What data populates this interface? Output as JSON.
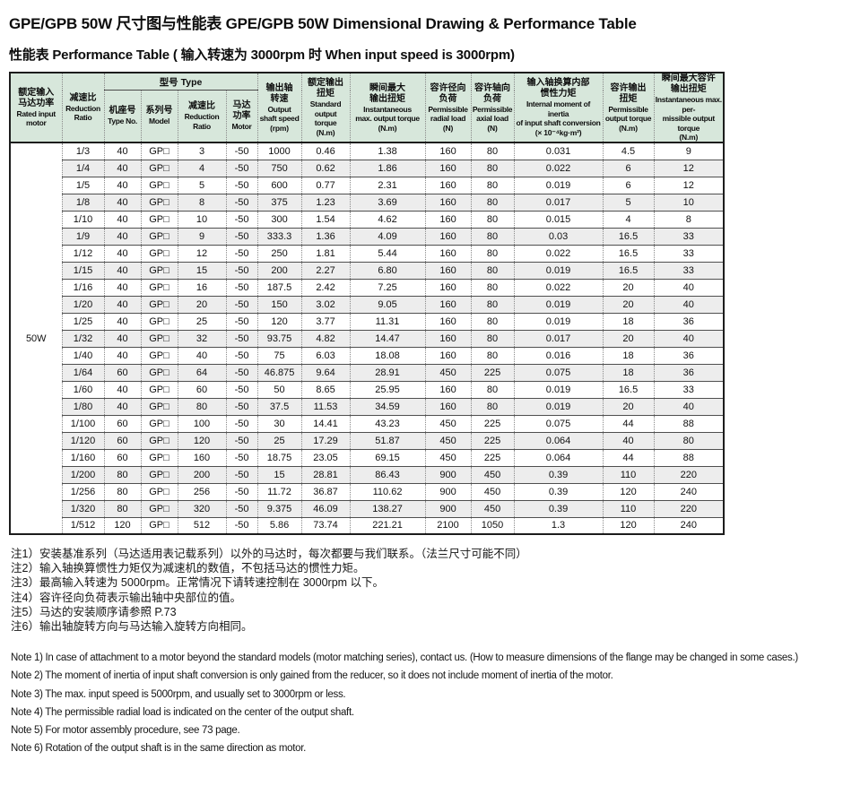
{
  "titles": {
    "main": "GPE/GPB 50W 尺寸图与性能表 GPE/GPB 50W Dimensional Drawing & Performance Table",
    "sub": "性能表 Performance Table ( 输入转速为 3000rpm 时  When input speed is 3000rpm)"
  },
  "table": {
    "group_header": "型号 Type",
    "motor_label": "50W",
    "headers": [
      {
        "zh": "额定输入\n马达功率",
        "en": "Rated input\nmotor",
        "unit": ""
      },
      {
        "zh": "减速比",
        "en": "Reduction\nRatio",
        "unit": ""
      },
      {
        "zh": "机座号",
        "en": "Type No.",
        "unit": ""
      },
      {
        "zh": "系列号",
        "en": "Model",
        "unit": ""
      },
      {
        "zh": "减速比",
        "en": "Reduction\nRatio",
        "unit": ""
      },
      {
        "zh": "马达\n功率",
        "en": "Motor",
        "unit": ""
      },
      {
        "zh": "输出轴\n转速",
        "en": "Output\nshaft speed",
        "unit": "(rpm)"
      },
      {
        "zh": "额定输出\n扭矩",
        "en": "Standard\noutput torque",
        "unit": "(N.m)"
      },
      {
        "zh": "瞬间最大\n输出扭矩",
        "en": "Instantaneous\nmax. output torque",
        "unit": "(N.m)"
      },
      {
        "zh": "容许径向\n负荷",
        "en": "Permissible\nradial load",
        "unit": "(N)"
      },
      {
        "zh": "容许轴向\n负荷",
        "en": "Permissible\naxial load",
        "unit": "(N)"
      },
      {
        "zh": "输入轴换算内部\n惯性力矩",
        "en": "Internal moment of inertia\nof input shaft conversion",
        "unit": "(× 10⁻⁴kg·m²)"
      },
      {
        "zh": "容许输出\n扭矩",
        "en": "Permissible\noutput torque",
        "unit": "(N.m)"
      },
      {
        "zh": "瞬间最大容许\n输出扭矩",
        "en": "Instantaneous max. per-\nmissible output torque",
        "unit": "(N.m)"
      }
    ],
    "rows": [
      [
        "1/3",
        "40",
        "GP□",
        "3",
        "-50",
        "1000",
        "0.46",
        "1.38",
        "160",
        "80",
        "0.031",
        "4.5",
        "9"
      ],
      [
        "1/4",
        "40",
        "GP□",
        "4",
        "-50",
        "750",
        "0.62",
        "1.86",
        "160",
        "80",
        "0.022",
        "6",
        "12"
      ],
      [
        "1/5",
        "40",
        "GP□",
        "5",
        "-50",
        "600",
        "0.77",
        "2.31",
        "160",
        "80",
        "0.019",
        "6",
        "12"
      ],
      [
        "1/8",
        "40",
        "GP□",
        "8",
        "-50",
        "375",
        "1.23",
        "3.69",
        "160",
        "80",
        "0.017",
        "5",
        "10"
      ],
      [
        "1/10",
        "40",
        "GP□",
        "10",
        "-50",
        "300",
        "1.54",
        "4.62",
        "160",
        "80",
        "0.015",
        "4",
        "8"
      ],
      [
        "1/9",
        "40",
        "GP□",
        "9",
        "-50",
        "333.3",
        "1.36",
        "4.09",
        "160",
        "80",
        "0.03",
        "16.5",
        "33"
      ],
      [
        "1/12",
        "40",
        "GP□",
        "12",
        "-50",
        "250",
        "1.81",
        "5.44",
        "160",
        "80",
        "0.022",
        "16.5",
        "33"
      ],
      [
        "1/15",
        "40",
        "GP□",
        "15",
        "-50",
        "200",
        "2.27",
        "6.80",
        "160",
        "80",
        "0.019",
        "16.5",
        "33"
      ],
      [
        "1/16",
        "40",
        "GP□",
        "16",
        "-50",
        "187.5",
        "2.42",
        "7.25",
        "160",
        "80",
        "0.022",
        "20",
        "40"
      ],
      [
        "1/20",
        "40",
        "GP□",
        "20",
        "-50",
        "150",
        "3.02",
        "9.05",
        "160",
        "80",
        "0.019",
        "20",
        "40"
      ],
      [
        "1/25",
        "40",
        "GP□",
        "25",
        "-50",
        "120",
        "3.77",
        "11.31",
        "160",
        "80",
        "0.019",
        "18",
        "36"
      ],
      [
        "1/32",
        "40",
        "GP□",
        "32",
        "-50",
        "93.75",
        "4.82",
        "14.47",
        "160",
        "80",
        "0.017",
        "20",
        "40"
      ],
      [
        "1/40",
        "40",
        "GP□",
        "40",
        "-50",
        "75",
        "6.03",
        "18.08",
        "160",
        "80",
        "0.016",
        "18",
        "36"
      ],
      [
        "1/64",
        "60",
        "GP□",
        "64",
        "-50",
        "46.875",
        "9.64",
        "28.91",
        "450",
        "225",
        "0.075",
        "18",
        "36"
      ],
      [
        "1/60",
        "40",
        "GP□",
        "60",
        "-50",
        "50",
        "8.65",
        "25.95",
        "160",
        "80",
        "0.019",
        "16.5",
        "33"
      ],
      [
        "1/80",
        "40",
        "GP□",
        "80",
        "-50",
        "37.5",
        "11.53",
        "34.59",
        "160",
        "80",
        "0.019",
        "20",
        "40"
      ],
      [
        "1/100",
        "60",
        "GP□",
        "100",
        "-50",
        "30",
        "14.41",
        "43.23",
        "450",
        "225",
        "0.075",
        "44",
        "88"
      ],
      [
        "1/120",
        "60",
        "GP□",
        "120",
        "-50",
        "25",
        "17.29",
        "51.87",
        "450",
        "225",
        "0.064",
        "40",
        "80"
      ],
      [
        "1/160",
        "60",
        "GP□",
        "160",
        "-50",
        "18.75",
        "23.05",
        "69.15",
        "450",
        "225",
        "0.064",
        "44",
        "88"
      ],
      [
        "1/200",
        "80",
        "GP□",
        "200",
        "-50",
        "15",
        "28.81",
        "86.43",
        "900",
        "450",
        "0.39",
        "110",
        "220"
      ],
      [
        "1/256",
        "80",
        "GP□",
        "256",
        "-50",
        "11.72",
        "36.87",
        "110.62",
        "900",
        "450",
        "0.39",
        "120",
        "240"
      ],
      [
        "1/320",
        "80",
        "GP□",
        "320",
        "-50",
        "9.375",
        "46.09",
        "138.27",
        "900",
        "450",
        "0.39",
        "110",
        "220"
      ],
      [
        "1/512",
        "120",
        "GP□",
        "512",
        "-50",
        "5.86",
        "73.74",
        "221.21",
        "2100",
        "1050",
        "1.3",
        "120",
        "240"
      ]
    ]
  },
  "notes_zh": [
    "注1）安装基准系列（马达适用表记载系列）以外的马达时，每次都要与我们联系。（法兰尺寸可能不同）",
    "注2）输入轴换算惯性力矩仅为减速机的数值，不包括马达的惯性力矩。",
    "注3）最高输入转速为 5000rpm。正常情况下请转速控制在 3000rpm 以下。",
    "注4）容许径向负荷表示输出轴中央部位的值。",
    "注5）马达的安装顺序请参照 P.73",
    "注6）输出轴旋转方向与马达输入旋转方向相同。"
  ],
  "notes_en": [
    "Note 1) In case of attachment to a motor beyond the standard models (motor matching series), contact us. (How to measure dimensions of the flange may be changed in some cases.)",
    "Note 2) The moment of inertia of input shaft conversion is only gained from the reducer, so it does not include moment of inertia of the motor.",
    "Note 3) The max. input speed is 5000rpm, and usually set to 3000rpm or less.",
    "Note 4) The permissible radial load is indicated on the center of the output shaft.",
    "Note 5) For motor assembly procedure, see 73 page.",
    "Note 6) Rotation of the output shaft is in the same direction as motor."
  ],
  "colors": {
    "header_bg": "#d7e7db",
    "alt_row_bg": "#ededed",
    "border_dark": "#1c1c1c",
    "border_dotted": "#8a8a8a"
  }
}
